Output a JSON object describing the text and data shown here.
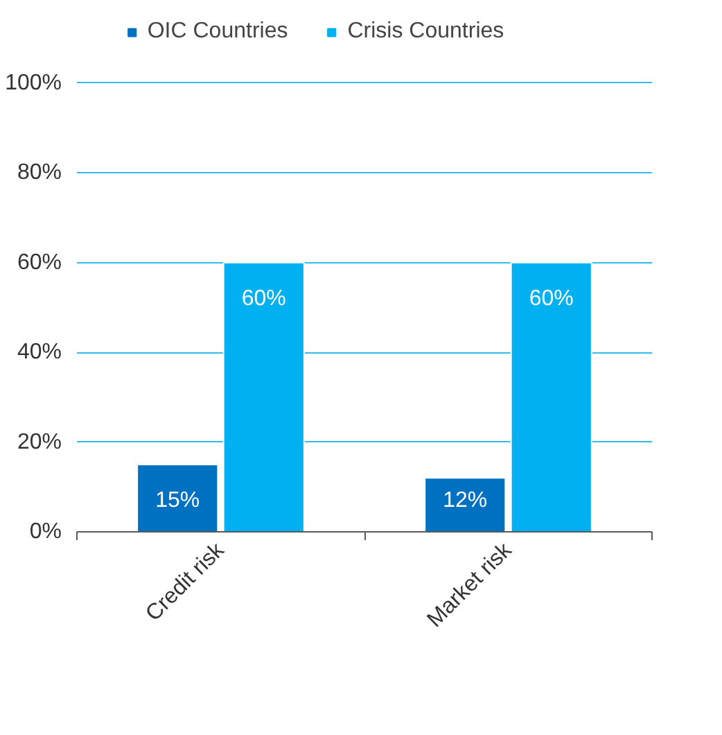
{
  "chart_data": {
    "type": "bar",
    "categories": [
      "Credit risk",
      "Market risk"
    ],
    "series": [
      {
        "name": "OIC Countries",
        "color": "#0070c0",
        "values": [
          15,
          12
        ],
        "value_labels": [
          "15%",
          "12%"
        ]
      },
      {
        "name": "Crisis Countries",
        "color": "#00b0f0",
        "values": [
          60,
          60
        ],
        "value_labels": [
          "60%",
          "60%"
        ]
      }
    ],
    "ylim": [
      0,
      100
    ],
    "yticks": [
      {
        "value": 0,
        "label": "0%"
      },
      {
        "value": 20,
        "label": "20%"
      },
      {
        "value": 40,
        "label": "40%"
      },
      {
        "value": 60,
        "label": "60%"
      },
      {
        "value": 80,
        "label": "80%"
      },
      {
        "value": 100,
        "label": "100%"
      }
    ],
    "grid": "y",
    "legend": "top"
  }
}
